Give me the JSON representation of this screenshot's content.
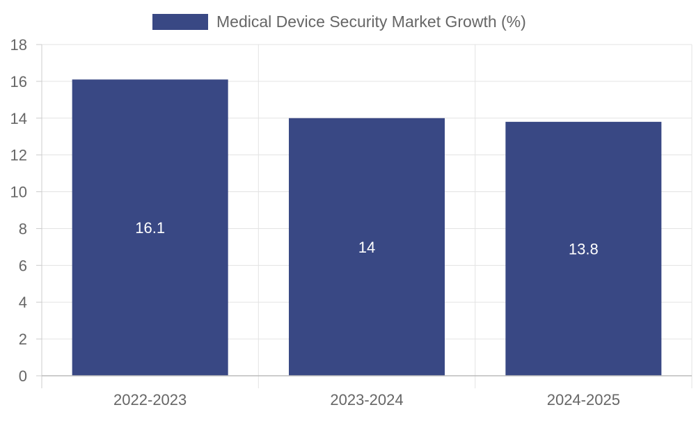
{
  "chart_data": {
    "type": "bar",
    "categories": [
      "2022-2023",
      "2023-2024",
      "2024-2025"
    ],
    "series": [
      {
        "name": "Medical Device Security Market Growth (%)",
        "values": [
          16.1,
          14,
          13.8
        ],
        "color": "#394884"
      }
    ],
    "ylim": [
      0,
      18
    ],
    "yticks": [
      0,
      2,
      4,
      6,
      8,
      10,
      12,
      14,
      16,
      18
    ],
    "grid": true,
    "legend_position": "top-center",
    "data_labels": [
      "16.1",
      "14",
      "13.8"
    ]
  }
}
